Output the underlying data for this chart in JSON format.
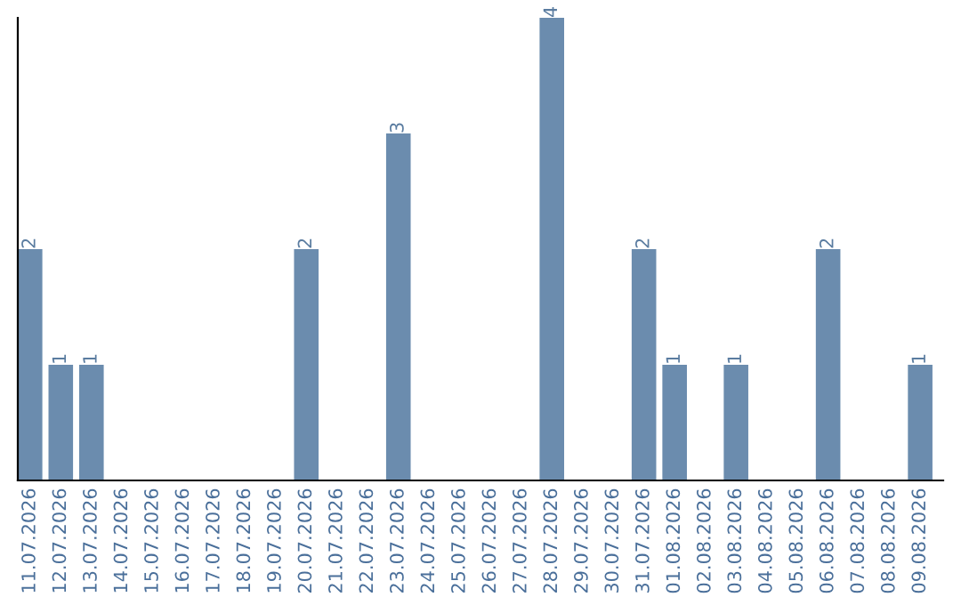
{
  "chart_data": {
    "type": "bar",
    "categories": [
      "11.07.2026",
      "12.07.2026",
      "13.07.2026",
      "14.07.2026",
      "15.07.2026",
      "16.07.2026",
      "17.07.2026",
      "18.07.2026",
      "19.07.2026",
      "20.07.2026",
      "21.07.2026",
      "22.07.2026",
      "23.07.2026",
      "24.07.2026",
      "25.07.2026",
      "26.07.2026",
      "27.07.2026",
      "28.07.2026",
      "29.07.2026",
      "30.07.2026",
      "31.07.2026",
      "01.08.2026",
      "02.08.2026",
      "03.08.2026",
      "04.08.2026",
      "05.08.2026",
      "06.08.2026",
      "07.08.2026",
      "08.08.2026",
      "09.08.2026"
    ],
    "values": [
      2,
      1,
      1,
      0,
      0,
      0,
      0,
      0,
      0,
      2,
      0,
      0,
      3,
      0,
      0,
      0,
      0,
      4,
      0,
      0,
      2,
      1,
      0,
      1,
      0,
      0,
      2,
      0,
      0,
      1
    ],
    "value_labels": [
      "2",
      "1",
      "1",
      null,
      null,
      null,
      null,
      null,
      null,
      "2",
      null,
      null,
      "3",
      null,
      null,
      null,
      null,
      "4",
      null,
      null,
      "2",
      "1",
      null,
      "1",
      null,
      null,
      "2",
      null,
      null,
      "1"
    ],
    "color": "#6b8cae",
    "grid": false,
    "legend": false
  }
}
